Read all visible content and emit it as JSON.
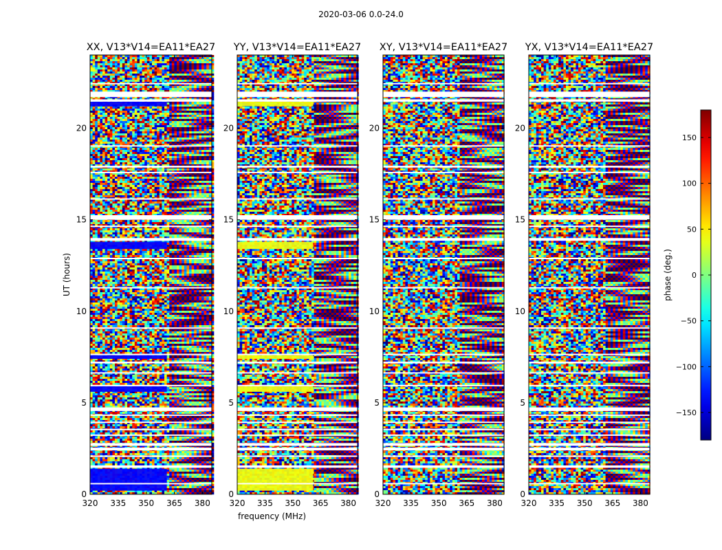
{
  "figure": {
    "suptitle": "2020-03-06 0.0-24.0"
  },
  "chart_data": [
    {
      "type": "heatmap",
      "title": "XX, V13*V14=EA11*EA27",
      "xlabel": "",
      "ylabel": "UT (hours)",
      "xlim": [
        320,
        385
      ],
      "ylim": [
        0,
        24
      ],
      "xticks": [
        320,
        335,
        350,
        365,
        380
      ],
      "yticks": [
        0,
        5,
        10,
        15,
        20
      ],
      "z_units": "phase (deg.)",
      "colormap": "jet",
      "features": [
        "band 320-361 MHz near-constant phase about -135 deg at UT 21.2-21.4, 13.4-13.8, 7.4-7.6, 5.6-5.9, 0.2-1.4",
        "band 361-385 MHz fringe pattern"
      ]
    },
    {
      "type": "heatmap",
      "title": "YY, V13*V14=EA11*EA27",
      "xlabel": "frequency (MHz)",
      "ylabel": "",
      "xlim": [
        320,
        385
      ],
      "ylim": [
        0,
        24
      ],
      "xticks": [
        320,
        335,
        350,
        365,
        380
      ],
      "yticks": [
        0,
        5,
        10,
        15,
        20
      ],
      "z_units": "phase (deg.)",
      "colormap": "jet",
      "features": [
        "band 320-361 MHz near-constant phase about +40 deg at UT 21.2-21.4, 13.4-13.8, 7.4-7.6, 5.6-5.9, 0.2-1.4"
      ]
    },
    {
      "type": "heatmap",
      "title": "XY, V13*V14=EA11*EA27",
      "xlabel": "",
      "ylabel": "",
      "xlim": [
        320,
        385
      ],
      "ylim": [
        0,
        24
      ],
      "xticks": [
        320,
        335,
        350,
        365,
        380
      ],
      "yticks": [
        0,
        5,
        10,
        15,
        20
      ],
      "z_units": "phase (deg.)",
      "colormap": "jet"
    },
    {
      "type": "heatmap",
      "title": "YX, V13*V14=EA11*EA27",
      "xlabel": "",
      "ylabel": "",
      "xlim": [
        320,
        385
      ],
      "ylim": [
        0,
        24
      ],
      "xticks": [
        320,
        335,
        350,
        365,
        380
      ],
      "yticks": [
        0,
        5,
        10,
        15,
        20
      ],
      "z_units": "phase (deg.)",
      "colormap": "jet"
    }
  ],
  "colorbar": {
    "label": "phase (deg.)",
    "range": [
      -180,
      180
    ],
    "ticks": [
      150,
      100,
      50,
      0,
      -50,
      -100,
      -150
    ],
    "tick_labels": [
      "150",
      "100",
      "50",
      "0",
      "−50",
      "−100",
      "−150"
    ]
  },
  "flagged_ut_hours": [
    [
      0.55,
      0.62
    ],
    [
      1.45,
      1.58
    ],
    [
      2.05,
      2.12
    ],
    [
      2.4,
      2.55
    ],
    [
      2.65,
      2.8
    ],
    [
      3.2,
      3.27
    ],
    [
      3.5,
      3.58
    ],
    [
      3.9,
      3.97
    ],
    [
      4.3,
      4.36
    ],
    [
      4.55,
      4.75
    ],
    [
      5.9,
      5.98
    ],
    [
      6.6,
      6.67
    ],
    [
      7.15,
      7.25
    ],
    [
      7.6,
      7.68
    ],
    [
      9.05,
      9.12
    ],
    [
      11.25,
      11.32
    ],
    [
      12.85,
      12.92
    ],
    [
      13.85,
      14.0
    ],
    [
      14.6,
      14.68
    ],
    [
      15.0,
      15.25
    ],
    [
      16.1,
      16.17
    ],
    [
      17.55,
      17.62
    ],
    [
      17.85,
      17.95
    ],
    [
      19.0,
      19.07
    ],
    [
      21.45,
      21.58
    ],
    [
      21.7,
      22.0
    ],
    [
      22.4,
      22.47
    ]
  ]
}
